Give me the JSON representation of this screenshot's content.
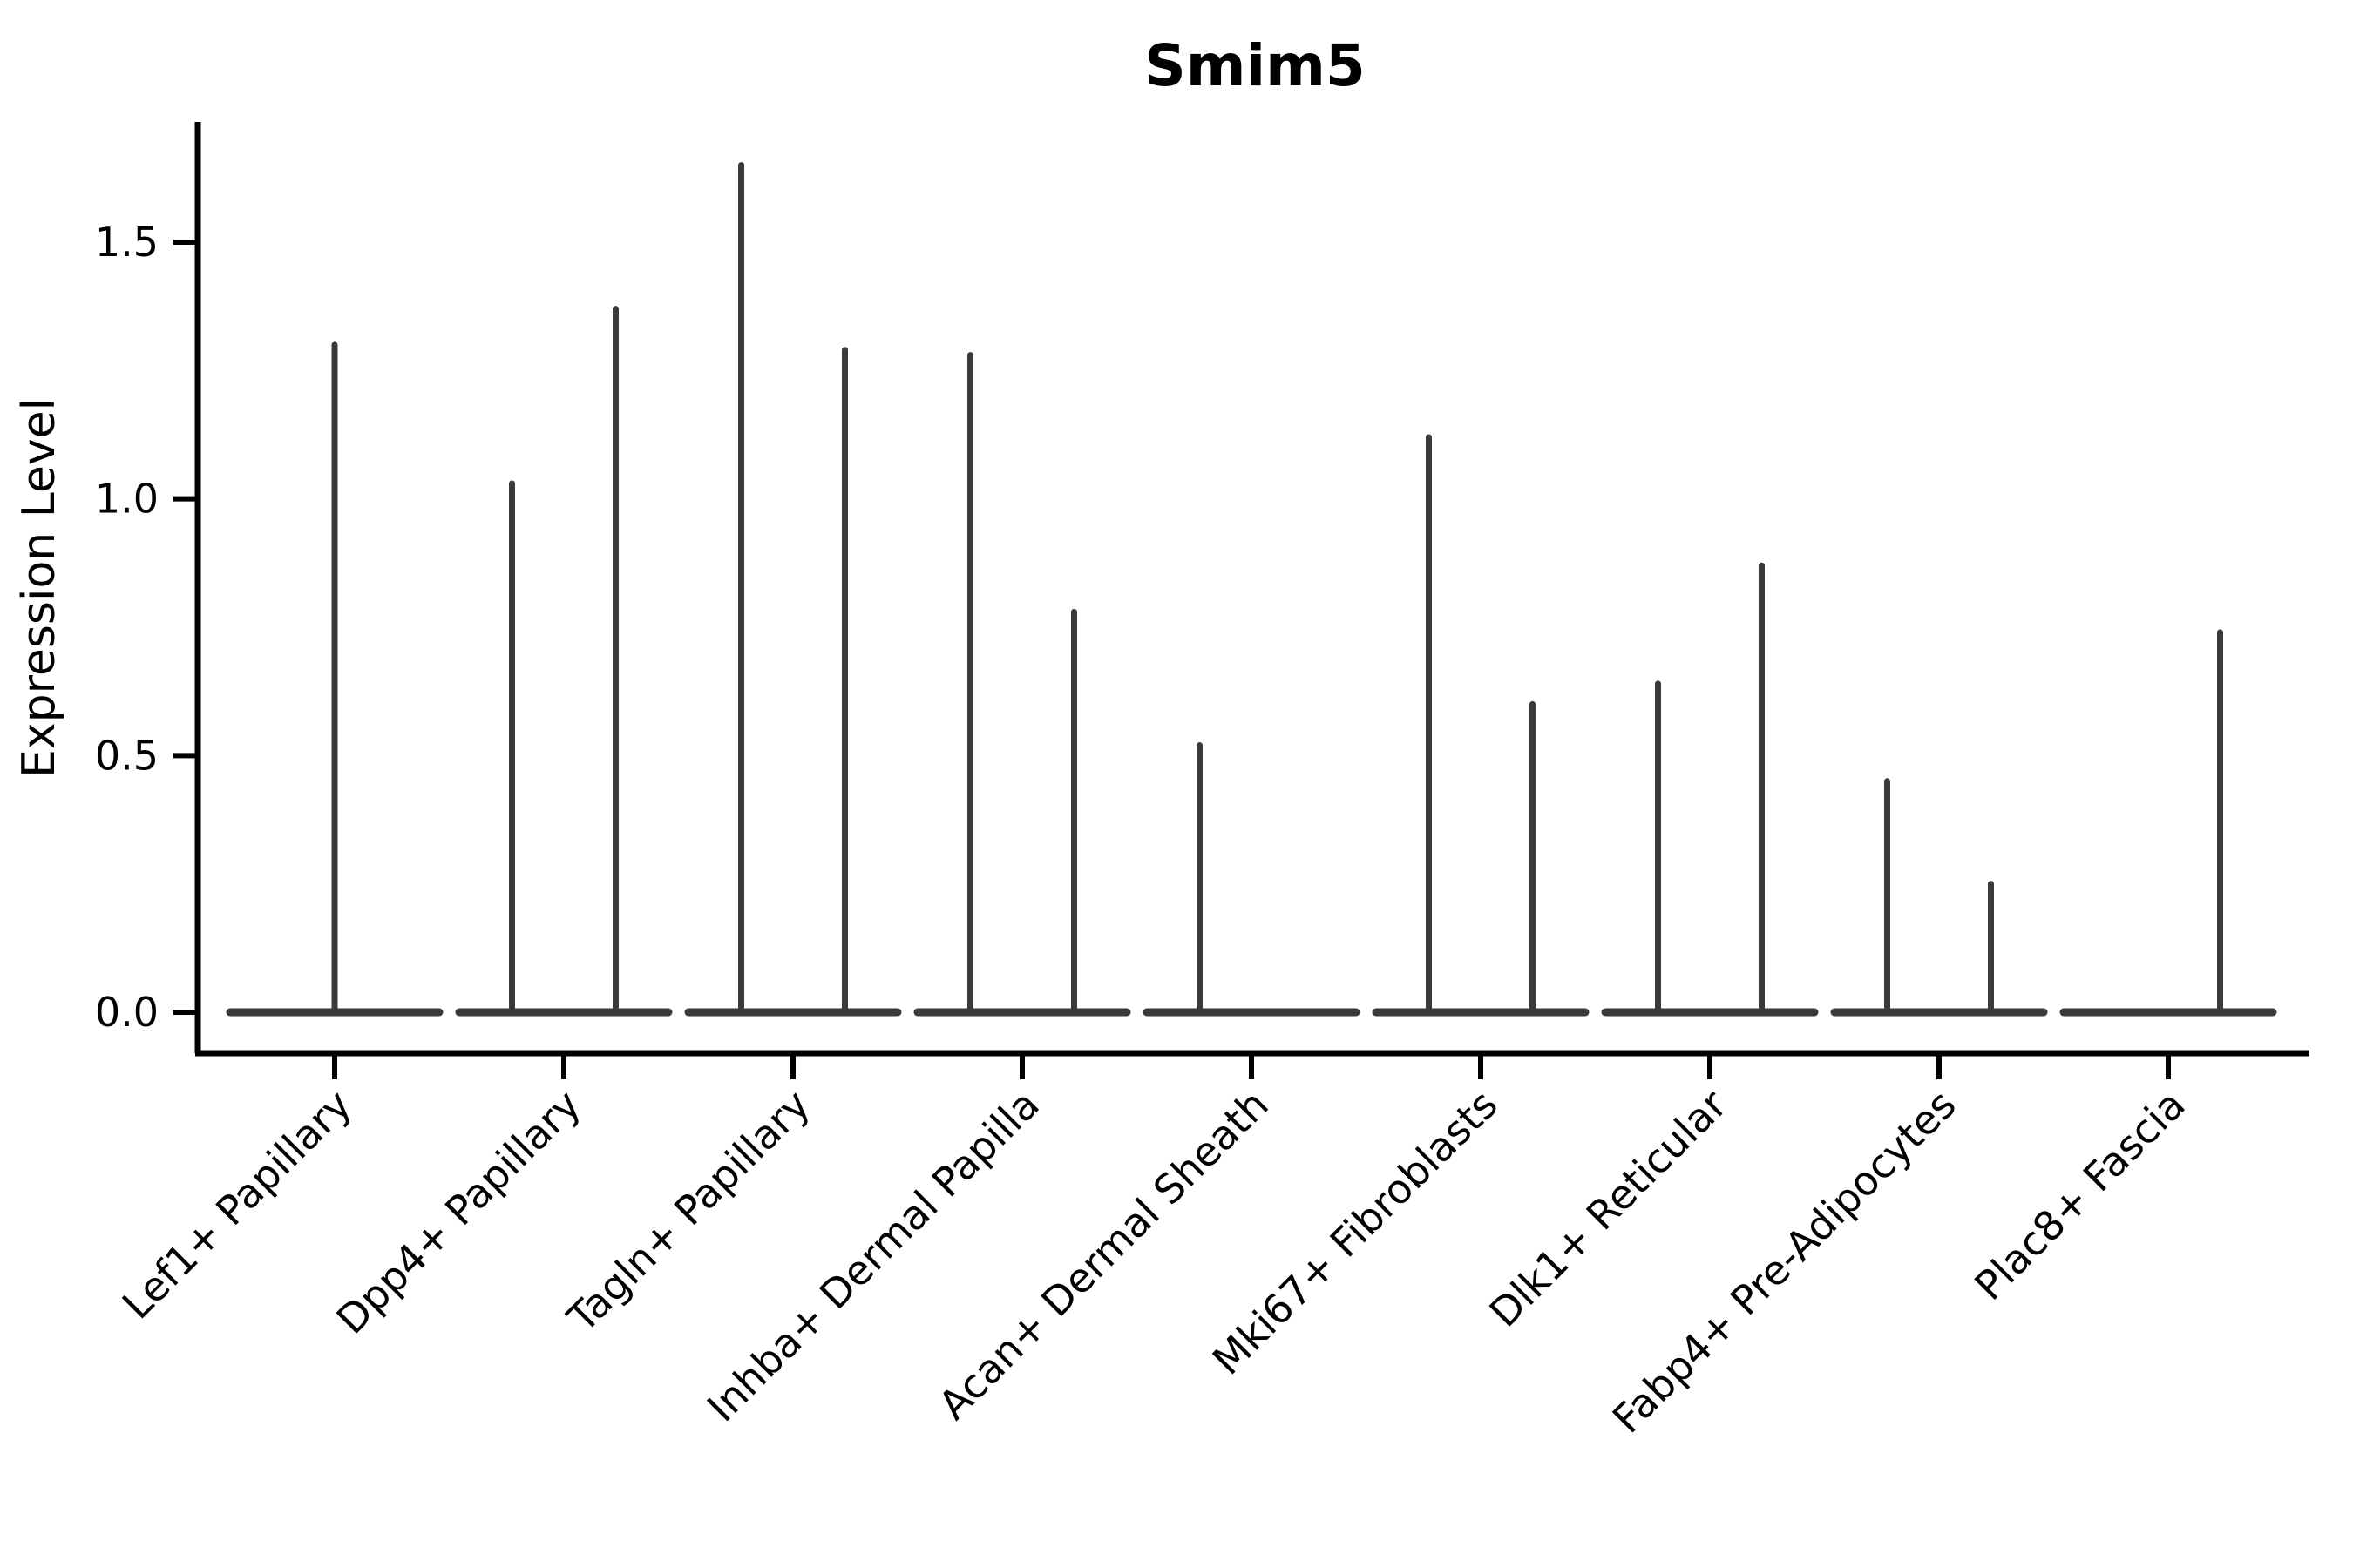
{
  "chart_data": {
    "type": "violin",
    "title": "Smim5",
    "xlabel": "",
    "ylabel": "Expression Level",
    "ytick_labels": [
      "0.0",
      "0.5",
      "1.0",
      "1.5"
    ],
    "ytick_values": [
      0.0,
      0.5,
      1.0,
      1.5
    ],
    "ylim": [
      -0.08,
      1.73
    ],
    "grid": false,
    "legend": "none",
    "categories": [
      "Lef1+ Papillary",
      "Dpp4+ Papillary",
      "Tagln+ Papillary",
      "Inhba+ Dermal Papilla",
      "Acan+ Dermal Sheath",
      "Mki67+ Fibroblasts",
      "Dlk1+ Reticular",
      "Fabp4+ Pre-Adipocytes",
      "Plac8+ Fascia"
    ],
    "violins": [
      {
        "category": "Lef1+ Papillary",
        "spikes": [
          {
            "pos": "center",
            "max": 1.3
          }
        ]
      },
      {
        "category": "Dpp4+ Papillary",
        "spikes": [
          {
            "pos": "left",
            "max": 1.03
          },
          {
            "pos": "right",
            "max": 1.37
          }
        ]
      },
      {
        "category": "Tagln+ Papillary",
        "spikes": [
          {
            "pos": "left",
            "max": 1.65
          },
          {
            "pos": "right",
            "max": 1.29
          }
        ]
      },
      {
        "category": "Inhba+ Dermal Papilla",
        "spikes": [
          {
            "pos": "left",
            "max": 1.28
          },
          {
            "pos": "right",
            "max": 0.78
          }
        ]
      },
      {
        "category": "Acan+ Dermal Sheath",
        "spikes": [
          {
            "pos": "left",
            "max": 0.52
          },
          {
            "pos": "right",
            "max": 0.0
          }
        ]
      },
      {
        "category": "Mki67+ Fibroblasts",
        "spikes": [
          {
            "pos": "left",
            "max": 1.12
          },
          {
            "pos": "right",
            "max": 0.6
          }
        ]
      },
      {
        "category": "Dlk1+ Reticular",
        "spikes": [
          {
            "pos": "left",
            "max": 0.64
          },
          {
            "pos": "right",
            "max": 0.87
          }
        ]
      },
      {
        "category": "Fabp4+ Pre-Adipocytes",
        "spikes": [
          {
            "pos": "left",
            "max": 0.45
          },
          {
            "pos": "right",
            "max": 0.25
          }
        ]
      },
      {
        "category": "Plac8+ Fascia",
        "spikes": [
          {
            "pos": "left",
            "max": 0.0
          },
          {
            "pos": "right",
            "max": 0.74
          }
        ]
      }
    ],
    "colors": {
      "axis": "#000000",
      "text": "#000000",
      "violin_line": "#3a3a3a",
      "background": "#ffffff"
    }
  }
}
